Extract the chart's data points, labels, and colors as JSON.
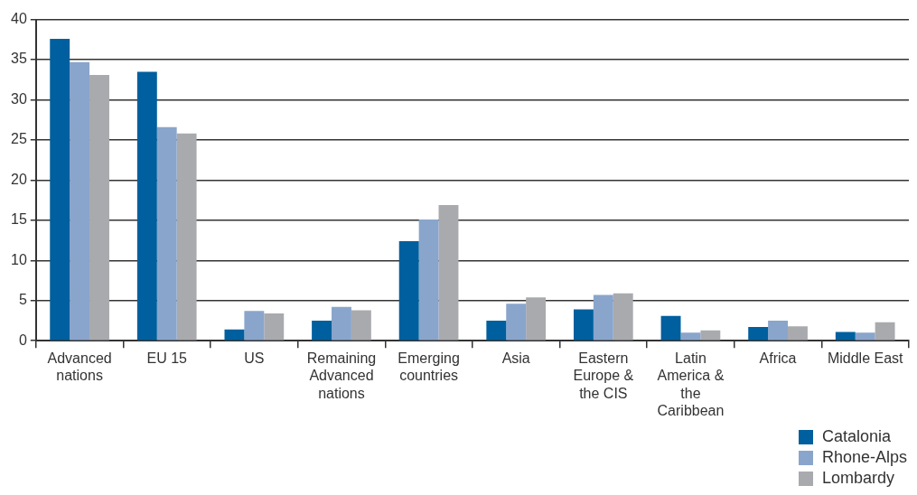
{
  "chart_data": {
    "type": "bar",
    "categories": [
      "Advanced nations",
      "EU 15",
      "US",
      "Remaining Advanced nations",
      "Emerging countries",
      "Asia",
      "Eastern Europe & the CIS",
      "Latin America & the Caribbean",
      "Africa",
      "Middle East"
    ],
    "series": [
      {
        "name": "Catalonia",
        "color": "#005f9e",
        "values": [
          37.6,
          33.5,
          1.4,
          2.5,
          12.4,
          2.5,
          3.9,
          3.1,
          1.7,
          1.1
        ]
      },
      {
        "name": "Rhone-Alps",
        "color": "#8aa5cb",
        "values": [
          34.7,
          26.6,
          3.7,
          4.2,
          15.1,
          4.6,
          5.7,
          1.0,
          2.5,
          1.0
        ]
      },
      {
        "name": "Lombardy",
        "color": "#a9aaae",
        "values": [
          33.1,
          25.8,
          3.4,
          3.8,
          16.9,
          5.4,
          5.9,
          1.3,
          1.8,
          2.3
        ]
      }
    ],
    "ylim": [
      0,
      40
    ],
    "yticks": [
      0,
      5,
      10,
      15,
      20,
      25,
      30,
      35,
      40
    ],
    "grid": "y",
    "legend": "bottom right"
  }
}
